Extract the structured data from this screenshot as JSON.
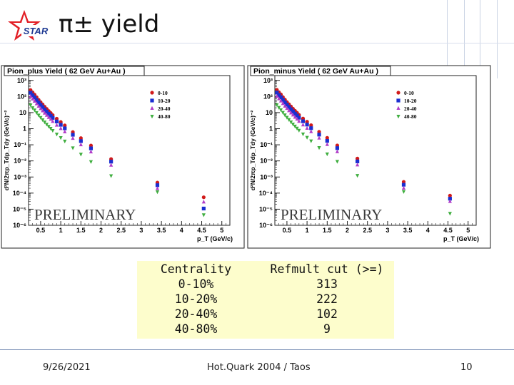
{
  "slide": {
    "title": "π± yield",
    "logo_text": "STAR",
    "footer_date": "9/26/2021",
    "footer_center": "Hot.Quark 2004 / Taos",
    "page_number": "10",
    "colors": {
      "accent_lines": "#c9d3e4",
      "footer_line": "#7a8fb5",
      "table_bg": "#fdfdcc",
      "logo_red": "#e21d24",
      "logo_blue": "#1f3a93"
    }
  },
  "table": {
    "col1_header": "Centrality",
    "col1_rows": [
      "0-10%",
      "10-20%",
      "20-40%",
      "40-80%"
    ],
    "col2_header": "Refmult cut (>=)",
    "col2_rows": [
      "313",
      "222",
      "102",
      "9"
    ]
  },
  "chart_data": [
    {
      "type": "scatter",
      "title": "Pion_plus Yield ( 62 GeV Au+Au )",
      "ylabel": "d²N/2πp_Tdp_Tdy (GeV/c)⁻²",
      "xlabel": "p_T (GeV/c)",
      "xlim": [
        0.2,
        5.2
      ],
      "ylim_log10": [
        -6,
        3.3
      ],
      "x_ticks": [
        "0.5",
        "1",
        "1.5",
        "2",
        "2.5",
        "3",
        "3.5",
        "4",
        "4.5",
        "5"
      ],
      "y_ticks": [
        "10³",
        "10²",
        "10",
        "1",
        "10⁻¹",
        "10⁻²",
        "10⁻³",
        "10⁻⁴",
        "10⁻⁵",
        "10⁻⁶"
      ],
      "watermark": "PRELIMINARY",
      "legend_position": "top-right",
      "series": [
        {
          "name": "0-10",
          "color": "#d11a1a",
          "marker": "circle",
          "x": [
            0.25,
            0.3,
            0.35,
            0.4,
            0.45,
            0.5,
            0.55,
            0.6,
            0.65,
            0.7,
            0.75,
            0.8,
            0.9,
            1.0,
            1.1,
            1.3,
            1.5,
            1.75,
            2.25,
            3.4,
            4.55
          ],
          "y": [
            250,
            180,
            130,
            90,
            62,
            44,
            32,
            23,
            17,
            12.5,
            9.5,
            7.0,
            4.2,
            2.6,
            1.6,
            0.62,
            0.26,
            0.09,
            0.013,
            0.00045,
            5.5e-05
          ]
        },
        {
          "name": "10-20",
          "color": "#1a2fd1",
          "marker": "square",
          "x": [
            0.25,
            0.3,
            0.35,
            0.4,
            0.45,
            0.5,
            0.55,
            0.6,
            0.65,
            0.7,
            0.75,
            0.8,
            0.9,
            1.0,
            1.1,
            1.3,
            1.5,
            1.75,
            2.25,
            3.4,
            4.55
          ],
          "y": [
            170,
            120,
            88,
            60,
            42,
            30,
            22,
            15.5,
            11.5,
            8.5,
            6.4,
            4.7,
            2.8,
            1.75,
            1.05,
            0.42,
            0.17,
            0.06,
            0.009,
            0.00031,
            1.1e-05
          ]
        },
        {
          "name": "20-40",
          "color": "#b23cc8",
          "marker": "triangle-up",
          "x": [
            0.25,
            0.3,
            0.35,
            0.4,
            0.45,
            0.5,
            0.55,
            0.6,
            0.65,
            0.7,
            0.75,
            0.8,
            0.9,
            1.0,
            1.1,
            1.3,
            1.5,
            1.75,
            2.25,
            3.4,
            4.55
          ],
          "y": [
            100,
            70,
            51,
            35,
            24.5,
            17.5,
            12.8,
            9.2,
            6.8,
            5.0,
            3.8,
            2.8,
            1.65,
            1.02,
            0.63,
            0.25,
            0.1,
            0.036,
            0.0054,
            0.00019,
            2.8e-05
          ]
        },
        {
          "name": "40-80",
          "color": "#3fae3f",
          "marker": "triangle-down",
          "x": [
            0.25,
            0.3,
            0.35,
            0.4,
            0.45,
            0.5,
            0.55,
            0.6,
            0.65,
            0.7,
            0.75,
            0.8,
            0.9,
            1.0,
            1.1,
            1.3,
            1.5,
            1.75,
            2.25,
            3.4,
            4.55
          ],
          "y": [
            30,
            20,
            14.5,
            10,
            7.0,
            5.0,
            3.6,
            2.6,
            1.9,
            1.4,
            1.05,
            0.78,
            0.46,
            0.28,
            0.17,
            0.065,
            0.026,
            0.009,
            0.0012,
            0.00012,
            4.5e-06
          ]
        }
      ]
    },
    {
      "type": "scatter",
      "title": "Pion_minus Yield ( 62 GeV Au+Au )",
      "ylabel": "d²N/2πp_Tdp_Tdy (GeV/c)⁻²",
      "xlabel": "p_T (GeV/c)",
      "xlim": [
        0.2,
        5.2
      ],
      "ylim_log10": [
        -6,
        3.3
      ],
      "x_ticks": [
        "0.5",
        "1",
        "1.5",
        "2",
        "2.5",
        "3",
        "3.5",
        "4",
        "4.5",
        "5"
      ],
      "y_ticks": [
        "10³",
        "10²",
        "10",
        "1",
        "10⁻¹",
        "10⁻²",
        "10⁻³",
        "10⁻⁴",
        "10⁻⁵",
        "10⁻⁶"
      ],
      "watermark": "PRELIMINARY",
      "legend_position": "top-right",
      "series": [
        {
          "name": "0-10",
          "color": "#d11a1a",
          "marker": "circle",
          "x": [
            0.25,
            0.3,
            0.35,
            0.4,
            0.45,
            0.5,
            0.55,
            0.6,
            0.65,
            0.7,
            0.75,
            0.8,
            0.9,
            1.0,
            1.1,
            1.3,
            1.5,
            1.75,
            2.25,
            3.4,
            4.55
          ],
          "y": [
            260,
            185,
            135,
            92,
            64,
            45,
            33,
            24,
            17.5,
            13,
            9.8,
            7.2,
            4.3,
            2.7,
            1.65,
            0.64,
            0.27,
            0.092,
            0.014,
            0.0005,
            7e-05
          ]
        },
        {
          "name": "10-20",
          "color": "#1a2fd1",
          "marker": "square",
          "x": [
            0.25,
            0.3,
            0.35,
            0.4,
            0.45,
            0.5,
            0.55,
            0.6,
            0.65,
            0.7,
            0.75,
            0.8,
            0.9,
            1.0,
            1.1,
            1.3,
            1.5,
            1.75,
            2.25,
            3.4,
            4.55
          ],
          "y": [
            175,
            124,
            90,
            62,
            43,
            31,
            22.5,
            16,
            11.8,
            8.7,
            6.6,
            4.8,
            2.9,
            1.8,
            1.08,
            0.43,
            0.175,
            0.062,
            0.0093,
            0.00033,
            4.5e-05
          ]
        },
        {
          "name": "20-40",
          "color": "#b23cc8",
          "marker": "triangle-up",
          "x": [
            0.25,
            0.3,
            0.35,
            0.4,
            0.45,
            0.5,
            0.55,
            0.6,
            0.65,
            0.7,
            0.75,
            0.8,
            0.9,
            1.0,
            1.1,
            1.3,
            1.5,
            1.75,
            2.25,
            3.4,
            4.55
          ],
          "y": [
            103,
            72,
            52,
            36,
            25,
            18,
            13,
            9.4,
            7.0,
            5.1,
            3.9,
            2.85,
            1.7,
            1.05,
            0.65,
            0.26,
            0.104,
            0.037,
            0.0056,
            0.0002,
            3e-05
          ]
        },
        {
          "name": "40-80",
          "color": "#3fae3f",
          "marker": "triangle-down",
          "x": [
            0.25,
            0.3,
            0.35,
            0.4,
            0.45,
            0.5,
            0.55,
            0.6,
            0.65,
            0.7,
            0.75,
            0.8,
            0.9,
            1.0,
            1.1,
            1.3,
            1.5,
            1.75,
            2.25,
            3.4,
            4.55
          ],
          "y": [
            31,
            21,
            15,
            10.3,
            7.2,
            5.1,
            3.7,
            2.65,
            1.95,
            1.45,
            1.08,
            0.8,
            0.47,
            0.29,
            0.175,
            0.067,
            0.027,
            0.0093,
            0.00125,
            0.000125,
            5.5e-06
          ]
        }
      ]
    }
  ]
}
